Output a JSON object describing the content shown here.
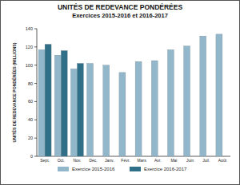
{
  "chart_data": {
    "type": "bar",
    "title": "UNITÉS DE REDEVANCE PONDÉRÉES",
    "subtitle": "Exercices 2015-2016 et 2016-2017",
    "y_label": "UNITÉS DE REDEVANCE PONDÉRÉES (MILLIONS)",
    "categories": [
      "Sept.",
      "Oct.",
      "Nov.",
      "Déc.",
      "Janv.",
      "Févr.",
      "Mars",
      "Avr.",
      "Mai",
      "Juin",
      "Juil.",
      "Août"
    ],
    "series": [
      {
        "name": "Exercice 2015-2016",
        "color": "#92b6ca",
        "values": [
          117,
          111,
          96,
          102,
          100,
          92,
          104,
          105,
          117,
          121,
          132,
          134
        ]
      },
      {
        "name": "Exercice 2016-2017",
        "color": "#2f6f88",
        "values": [
          123,
          116,
          102,
          null,
          null,
          null,
          null,
          null,
          null,
          null,
          null,
          null
        ]
      }
    ],
    "ylim": [
      0,
      140
    ],
    "yticks": [
      0,
      20,
      40,
      60,
      80,
      100,
      120,
      140
    ],
    "grid": false,
    "legend": "bottom"
  }
}
